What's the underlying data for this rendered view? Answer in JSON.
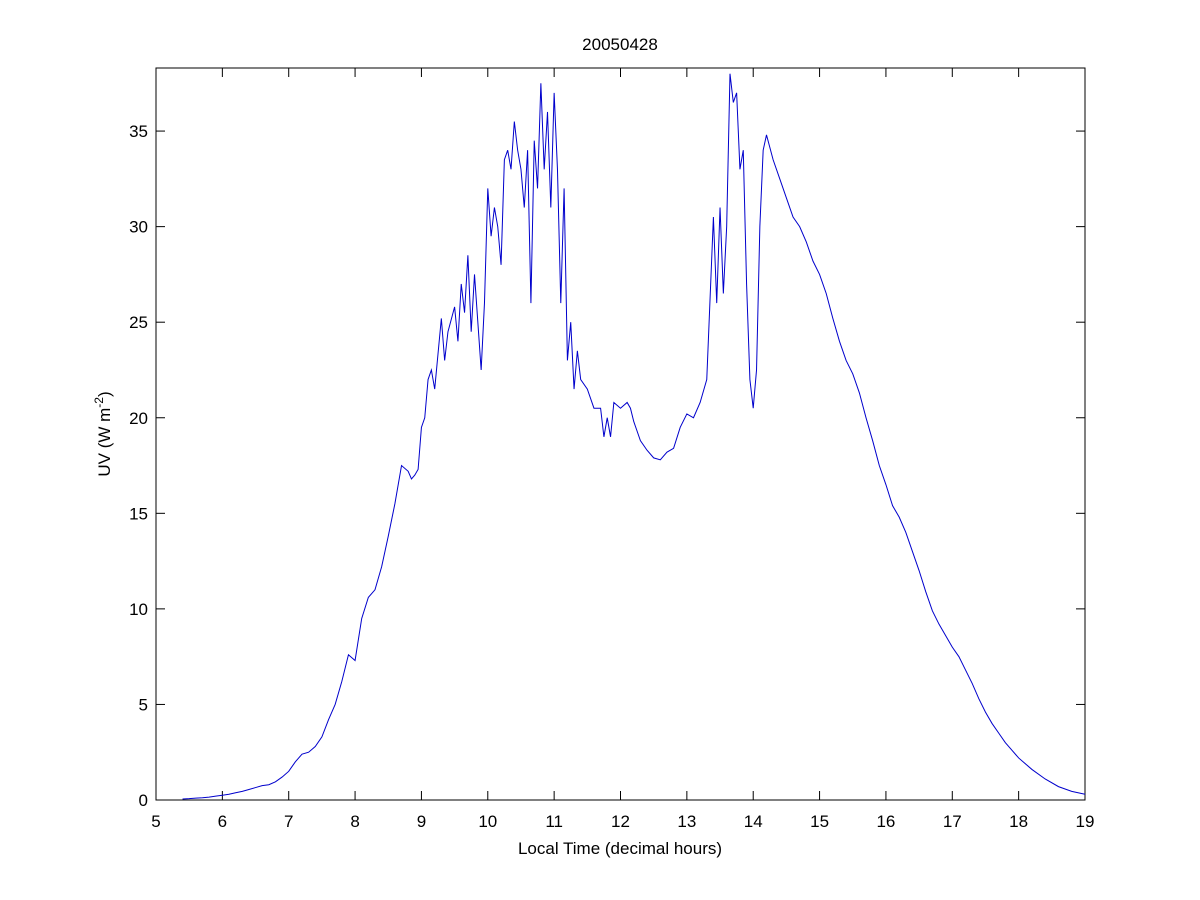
{
  "chart_data": {
    "type": "line",
    "title": "20050428",
    "xlabel": "Local Time (decimal hours)",
    "ylabel": {
      "text": "UV (W m",
      "sup": "-2",
      "end": ")"
    },
    "xlim": [
      5,
      19
    ],
    "ylim": [
      0,
      38.3
    ],
    "xticks": [
      5,
      6,
      7,
      8,
      9,
      10,
      11,
      12,
      13,
      14,
      15,
      16,
      17,
      18,
      19
    ],
    "yticks": [
      0,
      5,
      10,
      15,
      20,
      25,
      30,
      35
    ],
    "series": [
      {
        "color": "#0000cc",
        "x": [
          5.4,
          5.5,
          5.6,
          5.7,
          5.8,
          5.9,
          6.0,
          6.1,
          6.2,
          6.3,
          6.4,
          6.5,
          6.6,
          6.7,
          6.8,
          6.9,
          7.0,
          7.1,
          7.2,
          7.3,
          7.4,
          7.5,
          7.6,
          7.7,
          7.8,
          7.9,
          8.0,
          8.1,
          8.2,
          8.3,
          8.4,
          8.5,
          8.6,
          8.7,
          8.8,
          8.85,
          8.9,
          8.95,
          9.0,
          9.05,
          9.1,
          9.15,
          9.2,
          9.3,
          9.35,
          9.4,
          9.5,
          9.55,
          9.6,
          9.65,
          9.7,
          9.75,
          9.8,
          9.85,
          9.9,
          9.95,
          10.0,
          10.05,
          10.1,
          10.15,
          10.2,
          10.25,
          10.3,
          10.35,
          10.4,
          10.45,
          10.5,
          10.55,
          10.6,
          10.65,
          10.7,
          10.75,
          10.8,
          10.85,
          10.9,
          10.95,
          11.0,
          11.05,
          11.1,
          11.15,
          11.2,
          11.25,
          11.3,
          11.35,
          11.4,
          11.5,
          11.6,
          11.7,
          11.75,
          11.8,
          11.85,
          11.9,
          12.0,
          12.1,
          12.15,
          12.2,
          12.3,
          12.4,
          12.5,
          12.6,
          12.7,
          12.8,
          12.9,
          13.0,
          13.1,
          13.2,
          13.3,
          13.4,
          13.45,
          13.5,
          13.55,
          13.6,
          13.65,
          13.7,
          13.75,
          13.8,
          13.85,
          13.9,
          13.95,
          14.0,
          14.05,
          14.1,
          14.15,
          14.2,
          14.3,
          14.4,
          14.5,
          14.6,
          14.7,
          14.8,
          14.9,
          15.0,
          15.1,
          15.2,
          15.3,
          15.4,
          15.5,
          15.6,
          15.7,
          15.8,
          15.9,
          16.0,
          16.1,
          16.2,
          16.3,
          16.4,
          16.5,
          16.6,
          16.7,
          16.8,
          16.9,
          17.0,
          17.1,
          17.2,
          17.3,
          17.4,
          17.5,
          17.6,
          17.7,
          17.8,
          17.9,
          18.0,
          18.2,
          18.4,
          18.6,
          18.8,
          19.0
        ],
        "values": [
          0.05,
          0.07,
          0.1,
          0.12,
          0.15,
          0.2,
          0.25,
          0.3,
          0.38,
          0.45,
          0.55,
          0.65,
          0.75,
          0.8,
          0.95,
          1.2,
          1.5,
          2.0,
          2.4,
          2.5,
          2.8,
          3.3,
          4.2,
          5.0,
          6.2,
          7.6,
          7.3,
          9.5,
          10.6,
          11.0,
          12.2,
          13.8,
          15.5,
          17.5,
          17.2,
          16.8,
          17.0,
          17.3,
          19.5,
          20.0,
          22.0,
          22.5,
          21.5,
          25.2,
          23.0,
          24.5,
          25.8,
          24.0,
          27.0,
          25.5,
          28.5,
          24.5,
          27.5,
          25.0,
          22.5,
          26.0,
          32.0,
          29.5,
          31.0,
          30.0,
          28.0,
          33.5,
          34.0,
          33.0,
          35.5,
          34.0,
          33.0,
          31.0,
          34.0,
          26.0,
          34.5,
          32.0,
          37.5,
          33.0,
          36.0,
          31.0,
          37.0,
          33.0,
          26.0,
          32.0,
          23.0,
          25.0,
          21.5,
          23.5,
          22.0,
          21.5,
          20.5,
          20.5,
          19.0,
          20.0,
          19.0,
          20.8,
          20.5,
          20.8,
          20.5,
          19.8,
          18.8,
          18.3,
          17.9,
          17.8,
          18.2,
          18.4,
          19.5,
          20.2,
          20.0,
          20.8,
          22.0,
          30.5,
          26.0,
          31.0,
          26.5,
          30.0,
          38.0,
          36.5,
          37.0,
          33.0,
          34.0,
          27.0,
          22.0,
          20.5,
          22.5,
          30.0,
          34.0,
          34.8,
          33.5,
          32.5,
          31.5,
          30.5,
          30.0,
          29.2,
          28.2,
          27.5,
          26.5,
          25.2,
          24.0,
          23.0,
          22.3,
          21.3,
          20.0,
          18.8,
          17.5,
          16.5,
          15.4,
          14.8,
          14.0,
          13.0,
          12.0,
          10.9,
          9.9,
          9.2,
          8.6,
          8.0,
          7.5,
          6.8,
          6.1,
          5.3,
          4.6,
          4.0,
          3.5,
          3.0,
          2.6,
          2.2,
          1.6,
          1.1,
          0.7,
          0.45,
          0.3
        ]
      }
    ]
  }
}
